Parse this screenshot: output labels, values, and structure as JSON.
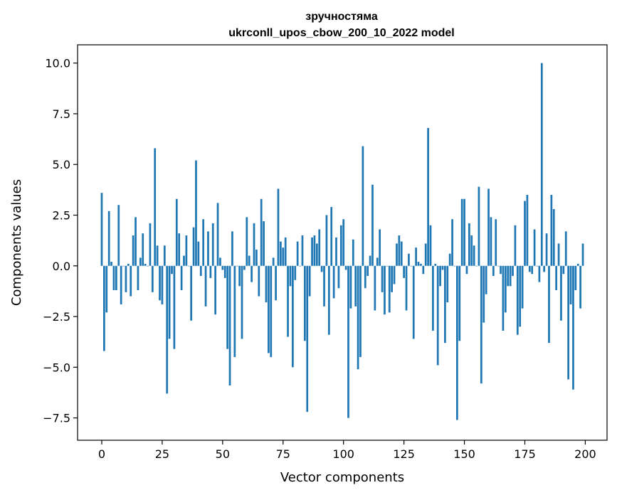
{
  "chart_data": {
    "type": "bar",
    "title_line1": "зручностяма",
    "title_line2": "ukrconll_upos_cbow_200_10_2022 model",
    "xlabel": "Vector components",
    "ylabel": "Components values",
    "xlim": [
      -10,
      209
    ],
    "ylim": [
      -8.6,
      10.9
    ],
    "xticks": [
      0,
      25,
      50,
      75,
      100,
      125,
      150,
      175,
      200
    ],
    "yticks": [
      -7.5,
      -5.0,
      -2.5,
      0.0,
      2.5,
      5.0,
      7.5,
      10.0
    ],
    "ytick_labels": [
      "−7.5",
      "−5.0",
      "−2.5",
      "0.0",
      "2.5",
      "5.0",
      "7.5",
      "10.0"
    ],
    "bar_color": "#1f77b4",
    "grid": false,
    "values": [
      3.6,
      -4.2,
      -2.3,
      2.7,
      0.2,
      -1.2,
      -1.2,
      3.0,
      -1.9,
      0.0,
      -1.3,
      0.1,
      -1.5,
      1.5,
      2.4,
      -1.2,
      0.4,
      1.6,
      0.1,
      0.0,
      2.1,
      -1.3,
      5.8,
      1.0,
      -1.7,
      -1.9,
      1.0,
      -6.3,
      -3.6,
      -0.4,
      -4.1,
      3.3,
      1.6,
      -1.2,
      0.5,
      1.5,
      0.0,
      -2.7,
      1.9,
      5.2,
      1.2,
      -0.5,
      2.3,
      -2.0,
      1.7,
      -0.6,
      2.1,
      -2.4,
      3.1,
      0.4,
      -0.2,
      -0.6,
      -4.1,
      -5.9,
      1.7,
      -4.5,
      0.0,
      -1.0,
      -3.6,
      -0.2,
      2.4,
      0.5,
      -0.8,
      2.1,
      0.8,
      -1.5,
      3.3,
      2.2,
      -1.8,
      -4.3,
      -4.5,
      0.4,
      -1.7,
      3.8,
      1.2,
      0.9,
      1.4,
      -3.5,
      -1.0,
      -5.0,
      -0.7,
      1.2,
      0.0,
      1.5,
      -3.7,
      -7.2,
      -1.5,
      1.4,
      1.5,
      1.1,
      1.8,
      -0.3,
      -2.0,
      2.5,
      -3.4,
      2.9,
      -1.6,
      1.4,
      -1.1,
      2.0,
      2.3,
      -0.2,
      -7.5,
      -2.1,
      1.3,
      -2.0,
      -5.1,
      -4.5,
      5.9,
      -1.1,
      -0.5,
      0.5,
      4.0,
      -2.2,
      0.4,
      1.8,
      -1.3,
      -2.4,
      0.0,
      -2.3,
      -1.3,
      -0.9,
      1.1,
      1.5,
      1.2,
      -0.6,
      -2.2,
      0.6,
      0.0,
      -3.6,
      0.9,
      0.2,
      0.1,
      -0.4,
      1.1,
      6.8,
      2.0,
      -3.2,
      0.1,
      -4.9,
      -1.0,
      -0.2,
      -3.8,
      -1.8,
      0.6,
      2.3,
      0.0,
      -7.6,
      -3.7,
      3.3,
      3.3,
      -0.4,
      2.1,
      1.5,
      1.0,
      0.0,
      3.9,
      -5.8,
      -2.8,
      -1.4,
      3.8,
      2.4,
      -0.5,
      2.3,
      0.0,
      -0.4,
      -3.2,
      -2.3,
      -1.0,
      -1.0,
      -0.5,
      2.0,
      -3.4,
      -3.0,
      -2.1,
      3.2,
      3.5,
      -0.3,
      -0.4,
      1.8,
      0.0,
      -0.8,
      10.0,
      -0.3,
      1.6,
      -3.8,
      3.5,
      2.8,
      -1.2,
      1.1,
      -2.7,
      -0.4,
      1.7,
      -5.6,
      -1.9,
      -6.1,
      -1.2,
      0.1,
      -2.1,
      1.1
    ]
  }
}
